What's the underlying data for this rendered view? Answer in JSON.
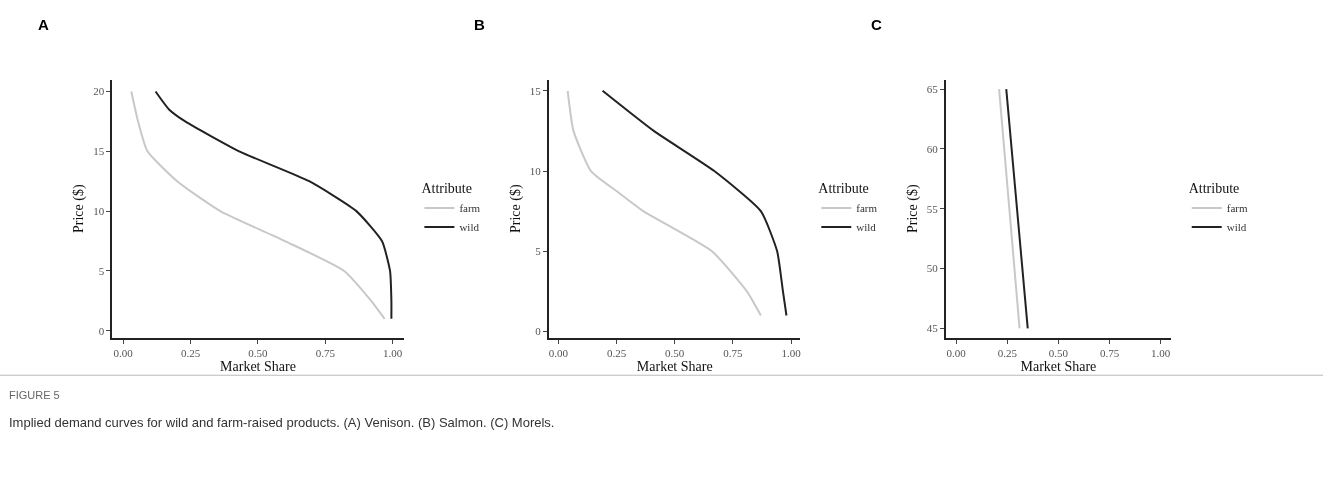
{
  "chart_data": [
    {
      "type": "line",
      "title": "A",
      "xlabel": "Market Share",
      "ylabel": "Price ($)",
      "legend_title": "Attribute",
      "legend": "right",
      "xlim": [
        -0.04,
        1.04
      ],
      "xticks": [
        {
          "value": 0,
          "label": "0.00"
        },
        {
          "value": 0.25,
          "label": "0.25"
        },
        {
          "value": 0.5,
          "label": "0.50"
        },
        {
          "value": 0.75,
          "label": "0.75"
        },
        {
          "value": 1,
          "label": "1.00"
        }
      ],
      "ylim": [
        -0.6,
        21
      ],
      "yticks": [
        0,
        5,
        10,
        15,
        20
      ],
      "series": [
        {
          "name": "farm",
          "color": "#c8c8c8",
          "x": [
            0.03,
            0.055,
            0.09,
            0.2,
            0.36,
            0.6,
            0.82,
            0.92,
            0.97
          ],
          "values": [
            20,
            17.5,
            15,
            12.5,
            10,
            7.5,
            5,
            2.5,
            1
          ]
        },
        {
          "name": "wild",
          "color": "#222222",
          "x": [
            0.12,
            0.17,
            0.23,
            0.43,
            0.69,
            0.865,
            0.96,
            0.99,
            0.995,
            0.995
          ],
          "values": [
            20,
            18.5,
            17.5,
            15,
            12.5,
            10,
            7.5,
            5,
            2.5,
            1
          ]
        }
      ],
      "annotations": [
        "FIGURE 5",
        "Implied demand curves for wild and farm-raised products. (A) Venison. (B) Salmon. (C) Morels."
      ]
    },
    {
      "type": "line",
      "title": "B",
      "xlabel": "Market Share",
      "ylabel": "Price ($)",
      "legend_title": "Attribute",
      "legend": "right",
      "xlim": [
        -0.04,
        1.04
      ],
      "xticks": [
        {
          "value": 0,
          "label": "0.00"
        },
        {
          "value": 0.25,
          "label": "0.25"
        },
        {
          "value": 0.5,
          "label": "0.50"
        },
        {
          "value": 0.75,
          "label": "0.75"
        },
        {
          "value": 1,
          "label": "1.00"
        }
      ],
      "ylim": [
        -0.4,
        15.7
      ],
      "yticks": [
        0,
        5,
        10,
        15
      ],
      "series": [
        {
          "name": "farm",
          "color": "#c8c8c8",
          "x": [
            0.04,
            0.065,
            0.14,
            0.25,
            0.365,
            0.66,
            0.81,
            0.87
          ],
          "values": [
            15,
            12.5,
            10,
            8.75,
            7.5,
            5,
            2.5,
            1
          ]
        },
        {
          "name": "wild",
          "color": "#222222",
          "x": [
            0.19,
            0.41,
            0.67,
            0.87,
            0.94,
            0.965,
            0.98
          ],
          "values": [
            15,
            12.5,
            10,
            7.5,
            5,
            2.5,
            1
          ]
        }
      ]
    },
    {
      "type": "line",
      "title": "C",
      "xlabel": "Market Share",
      "ylabel": "Price ($)",
      "legend_title": "Attribute",
      "legend": "right",
      "xlim": [
        -0.05,
        1.05
      ],
      "xticks": [
        {
          "value": 0,
          "label": "0.00"
        },
        {
          "value": 0.25,
          "label": "0.25"
        },
        {
          "value": 0.5,
          "label": "0.50"
        },
        {
          "value": 0.75,
          "label": "0.75"
        },
        {
          "value": 1,
          "label": "1.00"
        }
      ],
      "ylim": [
        44.2,
        65.8
      ],
      "yticks": [
        45,
        50,
        55,
        60,
        65
      ],
      "series": [
        {
          "name": "farm",
          "color": "#c8c8c8",
          "x": [
            0.21,
            0.31
          ],
          "values": [
            65,
            45
          ]
        },
        {
          "name": "wild",
          "color": "#222222",
          "x": [
            0.245,
            0.35
          ],
          "values": [
            65,
            45
          ]
        }
      ]
    }
  ]
}
